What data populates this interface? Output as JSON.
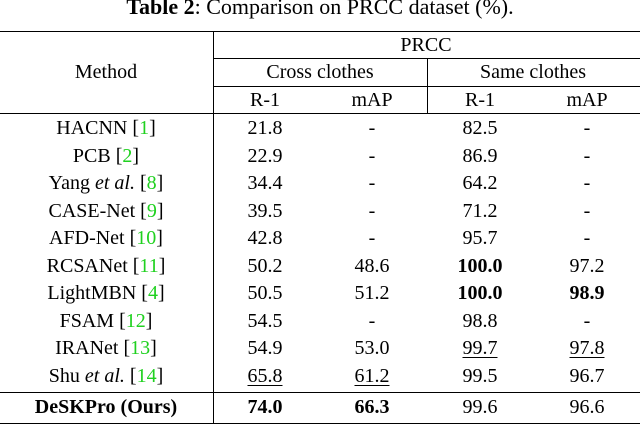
{
  "caption": {
    "label": "Table 2",
    "text": ": Comparison on PRCC dataset (%)."
  },
  "table": {
    "header": {
      "method": "Method",
      "dataset": "PRCC",
      "groups": [
        "Cross clothes",
        "Same clothes"
      ],
      "metrics": [
        "R-1",
        "mAP",
        "R-1",
        "mAP"
      ]
    },
    "rows": [
      {
        "name": "HACNN",
        "cite": "[1]",
        "values": [
          "21.8",
          "-",
          "82.5",
          "-"
        ],
        "bold": [
          false,
          false,
          false,
          false
        ],
        "underline": [
          false,
          false,
          false,
          false
        ]
      },
      {
        "name": "PCB",
        "cite": "[2]",
        "values": [
          "22.9",
          "-",
          "86.9",
          "-"
        ],
        "bold": [
          false,
          false,
          false,
          false
        ],
        "underline": [
          false,
          false,
          false,
          false
        ]
      },
      {
        "name": "Yang",
        "etal": "et al.",
        "cite": "[8]",
        "values": [
          "34.4",
          "-",
          "64.2",
          "-"
        ],
        "bold": [
          false,
          false,
          false,
          false
        ],
        "underline": [
          false,
          false,
          false,
          false
        ]
      },
      {
        "name": "CASE-Net",
        "cite": "[9]",
        "values": [
          "39.5",
          "-",
          "71.2",
          "-"
        ],
        "bold": [
          false,
          false,
          false,
          false
        ],
        "underline": [
          false,
          false,
          false,
          false
        ]
      },
      {
        "name": "AFD-Net",
        "cite": "[10]",
        "values": [
          "42.8",
          "-",
          "95.7",
          "-"
        ],
        "bold": [
          false,
          false,
          false,
          false
        ],
        "underline": [
          false,
          false,
          false,
          false
        ]
      },
      {
        "name": "RCSANet",
        "cite": "[11]",
        "values": [
          "50.2",
          "48.6",
          "100.0",
          "97.2"
        ],
        "bold": [
          false,
          false,
          true,
          false
        ],
        "underline": [
          false,
          false,
          false,
          false
        ]
      },
      {
        "name": "LightMBN",
        "cite": "[4]",
        "values": [
          "50.5",
          "51.2",
          "100.0",
          "98.9"
        ],
        "bold": [
          false,
          false,
          true,
          true
        ],
        "underline": [
          false,
          false,
          false,
          false
        ]
      },
      {
        "name": "FSAM",
        "cite": "[12]",
        "values": [
          "54.5",
          "-",
          "98.8",
          "-"
        ],
        "bold": [
          false,
          false,
          false,
          false
        ],
        "underline": [
          false,
          false,
          false,
          false
        ]
      },
      {
        "name": "IRANet",
        "cite": "[13]",
        "values": [
          "54.9",
          "53.0",
          "99.7",
          "97.8"
        ],
        "bold": [
          false,
          false,
          false,
          false
        ],
        "underline": [
          false,
          false,
          true,
          true
        ]
      },
      {
        "name": "Shu",
        "etal": "et al.",
        "cite": "[14]",
        "values": [
          "65.8",
          "61.2",
          "99.5",
          "96.7"
        ],
        "bold": [
          false,
          false,
          false,
          false
        ],
        "underline": [
          true,
          true,
          false,
          false
        ]
      },
      {
        "name": "DeSKPro (Ours)",
        "method_bold": true,
        "values": [
          "74.0",
          "66.3",
          "99.6",
          "96.6"
        ],
        "bold": [
          true,
          true,
          false,
          false
        ],
        "underline": [
          false,
          false,
          false,
          false
        ]
      }
    ]
  }
}
